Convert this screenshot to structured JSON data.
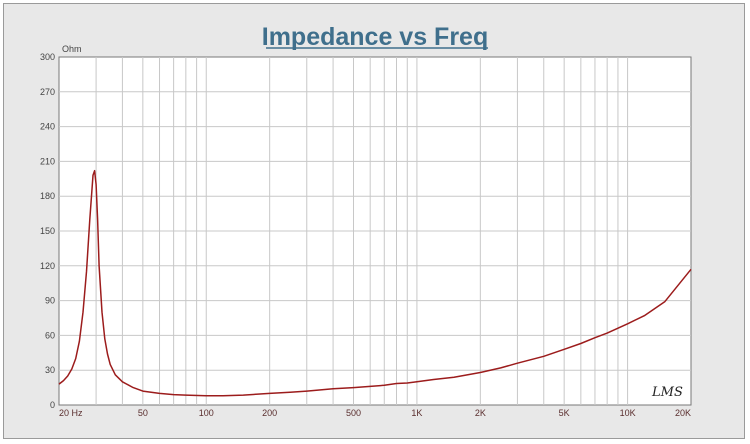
{
  "chart_data": {
    "type": "line",
    "title": "Impedance vs Freq",
    "ylabel": "Ohm",
    "xlabel": "",
    "xscale": "log",
    "xlim": [
      20,
      20000
    ],
    "ylim": [
      0,
      300
    ],
    "grid": true,
    "brand": "LMS",
    "y_ticks": [
      0,
      30,
      60,
      90,
      120,
      150,
      180,
      210,
      240,
      270,
      300
    ],
    "x_ticks": [
      {
        "value": 20,
        "label": "20  Hz"
      },
      {
        "value": 50,
        "label": "50"
      },
      {
        "value": 100,
        "label": "100"
      },
      {
        "value": 200,
        "label": "200"
      },
      {
        "value": 500,
        "label": "500"
      },
      {
        "value": 1000,
        "label": "1K"
      },
      {
        "value": 2000,
        "label": "2K"
      },
      {
        "value": 5000,
        "label": "5K"
      },
      {
        "value": 10000,
        "label": "10K"
      },
      {
        "value": 20000,
        "label": "20K"
      }
    ],
    "series": [
      {
        "color": "#9c1c1c",
        "x": [
          20,
          21,
          22,
          23,
          24,
          25,
          26,
          27,
          28,
          29,
          29.5,
          30,
          30.5,
          31,
          32,
          33,
          34,
          35,
          37,
          40,
          45,
          50,
          60,
          70,
          80,
          100,
          120,
          150,
          200,
          250,
          300,
          400,
          500,
          600,
          700,
          800,
          900,
          1000,
          1200,
          1500,
          2000,
          2500,
          3000,
          4000,
          5000,
          6000,
          7000,
          8000,
          10000,
          12000,
          15000,
          20000
        ],
        "y": [
          18,
          21,
          25,
          31,
          40,
          55,
          80,
          115,
          160,
          198,
          202,
          190,
          160,
          120,
          80,
          57,
          44,
          35,
          26,
          20,
          15,
          12,
          10,
          9,
          8.5,
          8,
          8,
          8.5,
          10,
          11,
          12,
          14,
          15,
          16,
          17,
          18.5,
          19,
          20,
          22,
          24,
          28,
          32,
          36,
          42,
          48,
          53,
          58,
          62,
          70,
          77,
          89,
          117
        ]
      }
    ]
  }
}
